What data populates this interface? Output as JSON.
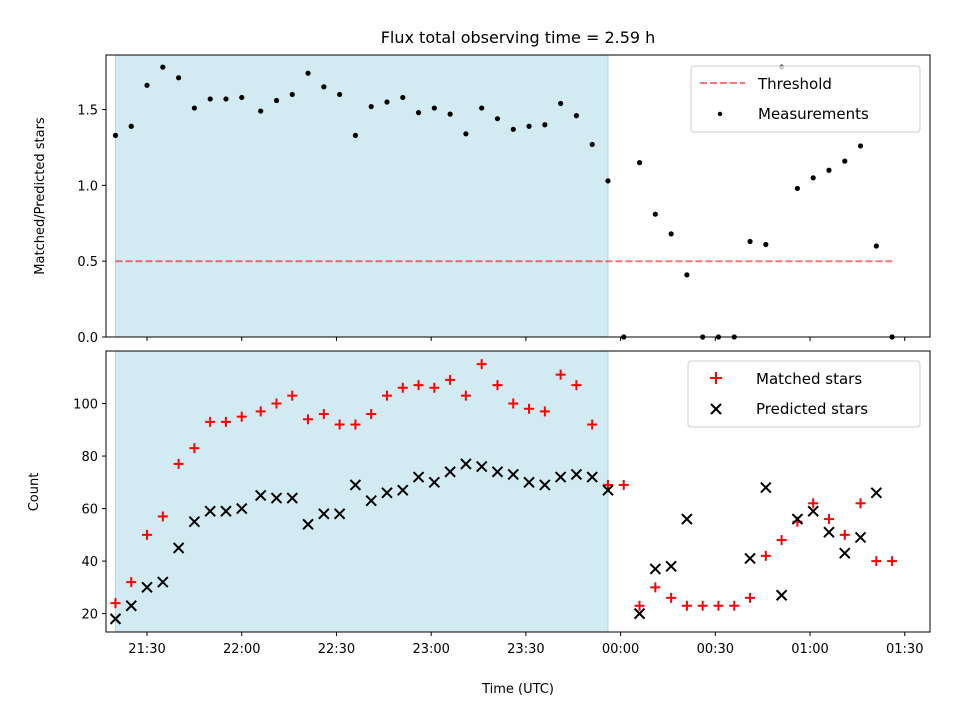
{
  "title": "Flux total observing time = 2.59 h",
  "colors": {
    "shade": "#add8e6",
    "threshold": "#ff0000",
    "matched": "#ff0000",
    "predicted": "#000000",
    "measurement": "#000000"
  },
  "chart_data": [
    {
      "type": "scatter",
      "panel": "top",
      "title": "Flux total observing time = 2.59 h",
      "xlabel": "",
      "ylabel": "Matched/Predicted stars",
      "xlim": [
        "21:17",
        "01:38"
      ],
      "ylim": [
        0,
        1.86
      ],
      "yticks": [
        0.0,
        0.5,
        1.0,
        1.5
      ],
      "ytick_labels": [
        "0.0",
        "0.5",
        "1.0",
        "1.5"
      ],
      "grid": false,
      "legend_position": "top-right",
      "shaded_interval": [
        "21:20",
        "23:56"
      ],
      "threshold": {
        "name": "Threshold",
        "style": "dashed",
        "value": 0.5,
        "x_range": [
          "21:20",
          "01:26"
        ]
      },
      "series": [
        {
          "name": "Measurements",
          "points": [
            [
              "21:20",
              1.33
            ],
            [
              "21:25",
              1.39
            ],
            [
              "21:30",
              1.66
            ],
            [
              "21:35",
              1.78
            ],
            [
              "21:40",
              1.71
            ],
            [
              "21:45",
              1.51
            ],
            [
              "21:50",
              1.57
            ],
            [
              "21:55",
              1.57
            ],
            [
              "22:00",
              1.58
            ],
            [
              "22:06",
              1.49
            ],
            [
              "22:11",
              1.56
            ],
            [
              "22:16",
              1.6
            ],
            [
              "22:21",
              1.74
            ],
            [
              "22:26",
              1.65
            ],
            [
              "22:31",
              1.6
            ],
            [
              "22:36",
              1.33
            ],
            [
              "22:41",
              1.52
            ],
            [
              "22:46",
              1.55
            ],
            [
              "22:51",
              1.58
            ],
            [
              "22:56",
              1.48
            ],
            [
              "23:01",
              1.51
            ],
            [
              "23:06",
              1.47
            ],
            [
              "23:11",
              1.34
            ],
            [
              "23:16",
              1.51
            ],
            [
              "23:21",
              1.44
            ],
            [
              "23:26",
              1.37
            ],
            [
              "23:31",
              1.39
            ],
            [
              "23:36",
              1.4
            ],
            [
              "23:41",
              1.54
            ],
            [
              "23:46",
              1.46
            ],
            [
              "23:51",
              1.27
            ],
            [
              "23:56",
              1.03
            ],
            [
              "00:01",
              0.0
            ],
            [
              "00:06",
              1.15
            ],
            [
              "00:11",
              0.81
            ],
            [
              "00:16",
              0.68
            ],
            [
              "00:21",
              0.41
            ],
            [
              "00:26",
              0.0
            ],
            [
              "00:31",
              0.0
            ],
            [
              "00:36",
              0.0
            ],
            [
              "00:41",
              0.63
            ],
            [
              "00:46",
              0.61
            ],
            [
              "00:51",
              1.78
            ],
            [
              "00:56",
              0.98
            ],
            [
              "01:01",
              1.05
            ],
            [
              "01:06",
              1.1
            ],
            [
              "01:11",
              1.16
            ],
            [
              "01:16",
              1.26
            ],
            [
              "01:21",
              0.6
            ],
            [
              "01:26",
              0.0
            ]
          ]
        }
      ]
    },
    {
      "type": "scatter",
      "panel": "bottom",
      "title": "",
      "xlabel": "Time (UTC)",
      "ylabel": "Count",
      "xlim": [
        "21:17",
        "01:38"
      ],
      "ylim": [
        13,
        120
      ],
      "xticks": [
        "21:30",
        "22:00",
        "22:30",
        "23:00",
        "23:30",
        "00:00",
        "00:30",
        "01:00",
        "01:30"
      ],
      "yticks": [
        20,
        40,
        60,
        80,
        100
      ],
      "ytick_labels": [
        "20",
        "40",
        "60",
        "80",
        "100"
      ],
      "grid": false,
      "legend_position": "top-right",
      "shaded_interval": [
        "21:20",
        "23:56"
      ],
      "series": [
        {
          "name": "Matched stars",
          "marker": "plus",
          "points": [
            [
              "21:20",
              24
            ],
            [
              "21:25",
              32
            ],
            [
              "21:30",
              50
            ],
            [
              "21:35",
              57
            ],
            [
              "21:40",
              77
            ],
            [
              "21:45",
              83
            ],
            [
              "21:50",
              93
            ],
            [
              "21:55",
              93
            ],
            [
              "22:00",
              95
            ],
            [
              "22:06",
              97
            ],
            [
              "22:11",
              100
            ],
            [
              "22:16",
              103
            ],
            [
              "22:21",
              94
            ],
            [
              "22:26",
              96
            ],
            [
              "22:31",
              92
            ],
            [
              "22:36",
              92
            ],
            [
              "22:41",
              96
            ],
            [
              "22:46",
              103
            ],
            [
              "22:51",
              106
            ],
            [
              "22:56",
              107
            ],
            [
              "23:01",
              106
            ],
            [
              "23:06",
              109
            ],
            [
              "23:11",
              103
            ],
            [
              "23:16",
              115
            ],
            [
              "23:21",
              107
            ],
            [
              "23:26",
              100
            ],
            [
              "23:31",
              98
            ],
            [
              "23:36",
              97
            ],
            [
              "23:41",
              111
            ],
            [
              "23:46",
              107
            ],
            [
              "23:51",
              92
            ],
            [
              "23:56",
              69
            ],
            [
              "00:01",
              69
            ],
            [
              "00:06",
              23
            ],
            [
              "00:11",
              30
            ],
            [
              "00:16",
              26
            ],
            [
              "00:21",
              23
            ],
            [
              "00:26",
              23
            ],
            [
              "00:31",
              23
            ],
            [
              "00:36",
              23
            ],
            [
              "00:41",
              26
            ],
            [
              "00:46",
              42
            ],
            [
              "00:51",
              48
            ],
            [
              "00:56",
              55
            ],
            [
              "01:01",
              62
            ],
            [
              "01:06",
              56
            ],
            [
              "01:11",
              50
            ],
            [
              "01:16",
              62
            ],
            [
              "01:21",
              40
            ],
            [
              "01:26",
              40
            ]
          ]
        },
        {
          "name": "Predicted stars",
          "marker": "x",
          "points": [
            [
              "21:20",
              18
            ],
            [
              "21:25",
              23
            ],
            [
              "21:30",
              30
            ],
            [
              "21:35",
              32
            ],
            [
              "21:40",
              45
            ],
            [
              "21:45",
              55
            ],
            [
              "21:50",
              59
            ],
            [
              "21:55",
              59
            ],
            [
              "22:00",
              60
            ],
            [
              "22:06",
              65
            ],
            [
              "22:11",
              64
            ],
            [
              "22:16",
              64
            ],
            [
              "22:21",
              54
            ],
            [
              "22:26",
              58
            ],
            [
              "22:31",
              58
            ],
            [
              "22:36",
              69
            ],
            [
              "22:41",
              63
            ],
            [
              "22:46",
              66
            ],
            [
              "22:51",
              67
            ],
            [
              "22:56",
              72
            ],
            [
              "23:01",
              70
            ],
            [
              "23:06",
              74
            ],
            [
              "23:11",
              77
            ],
            [
              "23:16",
              76
            ],
            [
              "23:21",
              74
            ],
            [
              "23:26",
              73
            ],
            [
              "23:31",
              70
            ],
            [
              "23:36",
              69
            ],
            [
              "23:41",
              72
            ],
            [
              "23:46",
              73
            ],
            [
              "23:51",
              72
            ],
            [
              "23:56",
              67
            ],
            [
              "00:06",
              20
            ],
            [
              "00:11",
              37
            ],
            [
              "00:16",
              38
            ],
            [
              "00:21",
              56
            ],
            [
              "00:41",
              41
            ],
            [
              "00:46",
              68
            ],
            [
              "00:51",
              27
            ],
            [
              "00:56",
              56
            ],
            [
              "01:01",
              59
            ],
            [
              "01:06",
              51
            ],
            [
              "01:11",
              43
            ],
            [
              "01:16",
              49
            ],
            [
              "01:21",
              66
            ]
          ]
        }
      ]
    }
  ]
}
